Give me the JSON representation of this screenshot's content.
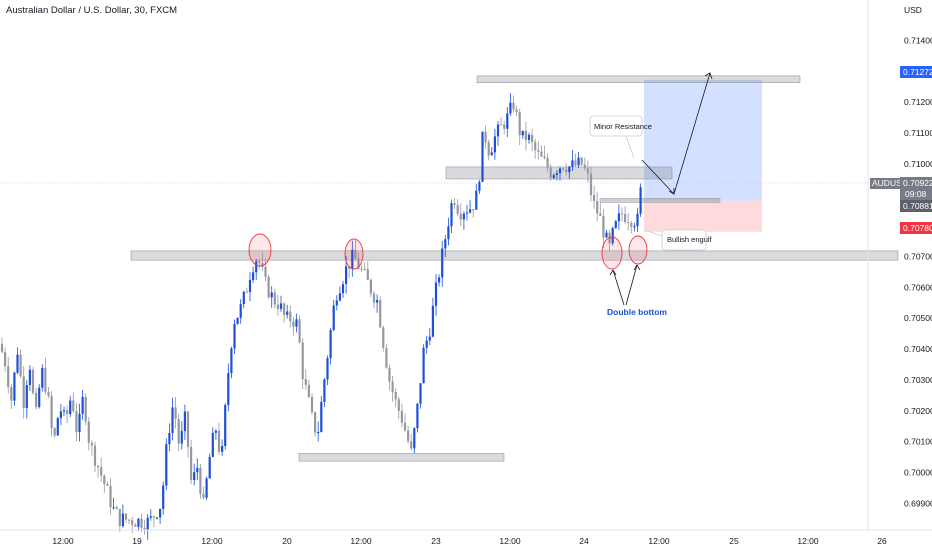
{
  "header": {
    "title": "Australian Dollar / U.S. Dollar, 30, FXCM",
    "currency": "USD"
  },
  "chart_data": {
    "type": "candlestick",
    "symbol": "AUDUSD",
    "ylim": [
      0.6984,
      0.7144
    ],
    "price_ticks": [
      "0.71400",
      "0.71300",
      "0.71200",
      "0.71100",
      "0.71000",
      "0.70900",
      "0.70800",
      "0.70700",
      "0.70600",
      "0.70500",
      "0.70400",
      "0.70300",
      "0.70200",
      "0.70100",
      "0.70000",
      "0.69900"
    ],
    "time_ticks": [
      "12:00",
      "19",
      "12:00",
      "20",
      "12:00",
      "23",
      "12:00",
      "24",
      "12:00",
      "25",
      "12:00",
      "26"
    ],
    "bullish_color": "#1e4fd6",
    "bearish_color": "#9598a1",
    "tags": {
      "target": {
        "value": "0.71272",
        "color": "#2962ff"
      },
      "current": {
        "symbol": "AUDUSD",
        "value": "0.70922",
        "countdown": "09:08",
        "color": "#787b86"
      },
      "entry": {
        "value": "0.70881",
        "color": "#787b86"
      },
      "stop": {
        "value": "0.70780",
        "color": "#f23645"
      }
    },
    "zones": [
      {
        "name": "top-resistance",
        "from": 0.71263,
        "to": 0.71285
      },
      {
        "name": "mid-resistance",
        "from": 0.70951,
        "to": 0.7099
      },
      {
        "name": "support",
        "from": 0.70688,
        "to": 0.70718
      },
      {
        "name": "bottom-support",
        "from": 0.70037,
        "to": 0.70062
      }
    ],
    "position": {
      "entry": 0.70881,
      "target": 0.71272,
      "stop": 0.7078
    },
    "annotations": {
      "minor_resistance": "Minor Resistance",
      "bullish_engulf": "Bullish engulf",
      "double_bottom": "Double bottom"
    },
    "anchors": [
      [
        0,
        0.70417
      ],
      [
        6,
        0.70355
      ],
      [
        12,
        0.70235
      ],
      [
        18,
        0.70398
      ],
      [
        24,
        0.70228
      ],
      [
        30,
        0.70365
      ],
      [
        36,
        0.70168
      ],
      [
        42,
        0.70335
      ],
      [
        48,
        0.70258
      ],
      [
        54,
        0.70085
      ],
      [
        60,
        0.70215
      ],
      [
        66,
        0.70165
      ],
      [
        72,
        0.70255
      ],
      [
        78,
        0.7012
      ],
      [
        84,
        0.7025
      ],
      [
        90,
        0.70095
      ],
      [
        96,
        0.70045
      ],
      [
        102,
        0.6999
      ],
      [
        108,
        0.69935
      ],
      [
        114,
        0.6988
      ],
      [
        120,
        0.6985
      ],
      [
        150,
        0.6984
      ],
      [
        162,
        0.699
      ],
      [
        168,
        0.7011
      ],
      [
        174,
        0.7023
      ],
      [
        180,
        0.7008
      ],
      [
        186,
        0.7018
      ],
      [
        192,
        0.6996
      ],
      [
        198,
        0.7002
      ],
      [
        204,
        0.6989
      ],
      [
        210,
        0.70045
      ],
      [
        216,
        0.7015
      ],
      [
        222,
        0.70035
      ],
      [
        228,
        0.703
      ],
      [
        234,
        0.7049
      ],
      [
        240,
        0.7052
      ],
      [
        246,
        0.7058
      ],
      [
        252,
        0.70665
      ],
      [
        258,
        0.707
      ],
      [
        262,
        0.70655
      ],
      [
        266,
        0.7061
      ],
      [
        270,
        0.70585
      ],
      [
        274,
        0.7056
      ],
      [
        280,
        0.70545
      ],
      [
        286,
        0.70495
      ],
      [
        292,
        0.705
      ],
      [
        298,
        0.7048
      ],
      [
        304,
        0.703
      ],
      [
        308,
        0.7025
      ],
      [
        312,
        0.7018
      ],
      [
        318,
        0.7012
      ],
      [
        324,
        0.7028
      ],
      [
        330,
        0.7043
      ],
      [
        336,
        0.70575
      ],
      [
        342,
        0.7062
      ],
      [
        348,
        0.7067
      ],
      [
        354,
        0.707
      ],
      [
        360,
        0.70665
      ],
      [
        366,
        0.7063
      ],
      [
        372,
        0.7059
      ],
      [
        378,
        0.70555
      ],
      [
        384,
        0.7042
      ],
      [
        390,
        0.703
      ],
      [
        396,
        0.7023
      ],
      [
        402,
        0.7018
      ],
      [
        408,
        0.7011
      ],
      [
        412,
        0.7006
      ],
      [
        418,
        0.7021
      ],
      [
        424,
        0.7039
      ],
      [
        430,
        0.7046
      ],
      [
        436,
        0.7058
      ],
      [
        442,
        0.7069
      ],
      [
        448,
        0.708
      ],
      [
        454,
        0.709
      ],
      [
        460,
        0.70845
      ],
      [
        466,
        0.70855
      ],
      [
        472,
        0.7086
      ],
      [
        478,
        0.709
      ],
      [
        484,
        0.7111
      ],
      [
        490,
        0.7104
      ],
      [
        496,
        0.7109
      ],
      [
        502,
        0.7112
      ],
      [
        508,
        0.7115
      ],
      [
        514,
        0.71195
      ],
      [
        518,
        0.7114
      ],
      [
        522,
        0.7108
      ],
      [
        528,
        0.7109
      ],
      [
        534,
        0.7105
      ],
      [
        540,
        0.7102
      ],
      [
        546,
        0.71
      ],
      [
        552,
        0.7097
      ],
      [
        558,
        0.7099
      ],
      [
        564,
        0.71
      ],
      [
        570,
        0.7099
      ],
      [
        576,
        0.70995
      ],
      [
        582,
        0.71
      ],
      [
        588,
        0.7096
      ],
      [
        594,
        0.7087
      ],
      [
        600,
        0.7083
      ],
      [
        606,
        0.7076
      ],
      [
        610,
        0.70725
      ],
      [
        614,
        0.7078
      ],
      [
        618,
        0.7081
      ],
      [
        622,
        0.7084
      ],
      [
        628,
        0.7083
      ],
      [
        634,
        0.7082
      ],
      [
        638,
        0.70815
      ],
      [
        642,
        0.70935
      ]
    ],
    "xlabel": "",
    "ylabel": ""
  }
}
